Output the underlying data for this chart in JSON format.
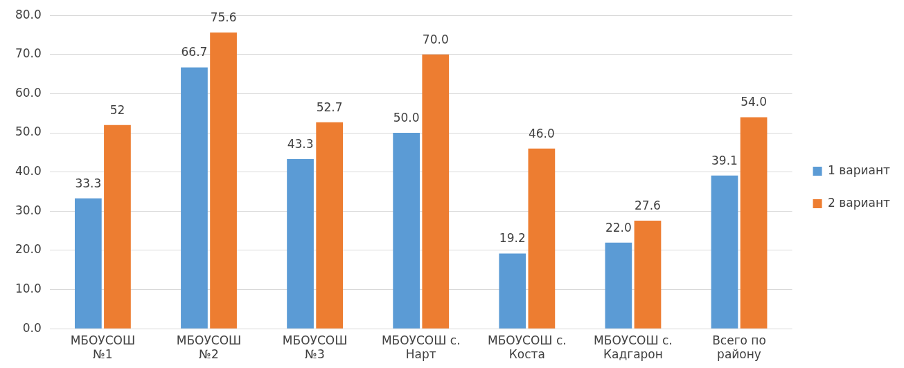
{
  "chart_data": {
    "type": "bar",
    "categories": [
      "МБОУСОШ\n№1",
      "МБОУСОШ\n№2",
      "МБОУСОШ\n№3",
      "МБОУСОШ с.\nНарт",
      "МБОУСОШ с.\nКоста",
      "МБОУСОШ с.\nКадгарон",
      "Всего по\nрайону"
    ],
    "series": [
      {
        "name": "1 вариант",
        "color": "#5b9bd5",
        "values": [
          33.3,
          66.7,
          43.3,
          50.0,
          19.2,
          22.0,
          39.1
        ],
        "value_labels": [
          "33.3",
          "66.7",
          "43.3",
          "50.0",
          "19.2",
          "22.0",
          "39.1"
        ]
      },
      {
        "name": "2 вариант",
        "color": "#ed7d31",
        "values": [
          52,
          75.6,
          52.7,
          70.0,
          46.0,
          27.6,
          54.0
        ],
        "value_labels": [
          "52",
          "75.6",
          "52.7",
          "70.0",
          "46.0",
          "27.6",
          "54.0"
        ]
      }
    ],
    "ylim": [
      0,
      80
    ],
    "yticks": [
      {
        "value": 0,
        "label": "0.0"
      },
      {
        "value": 10,
        "label": "10.0"
      },
      {
        "value": 20,
        "label": "20.0"
      },
      {
        "value": 30,
        "label": "30.0"
      },
      {
        "value": 40,
        "label": "40.0"
      },
      {
        "value": 50,
        "label": "50.0"
      },
      {
        "value": 60,
        "label": "60.0"
      },
      {
        "value": 70,
        "label": "70.0"
      },
      {
        "value": 80,
        "label": "80.0"
      }
    ],
    "grid": "y",
    "legend": "right"
  }
}
